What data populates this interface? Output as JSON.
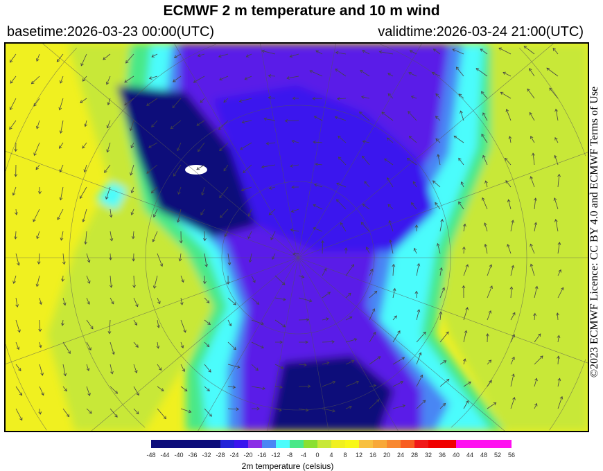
{
  "title": "ECMWF 2 m temperature and 10 m wind",
  "basetime": "basetime:2026-03-23 00:00(UTC)",
  "validtime": "validtime:2026-03-24 21:00(UTC)",
  "licence": "©2023 ECMWF Licence: CC BY 4.0 and ECMWF Terms of Use",
  "colorbar": {
    "label": "2m temperature (celsius)",
    "ticks": [
      "-48",
      "-44",
      "-40",
      "-36",
      "-32",
      "-28",
      "-24",
      "-20",
      "-16",
      "-12",
      "-8",
      "-4",
      "0",
      "4",
      "8",
      "12",
      "16",
      "20",
      "24",
      "28",
      "32",
      "36",
      "40",
      "44",
      "48",
      "52",
      "56"
    ],
    "colors": [
      "#0c0c7a",
      "#0c0c7a",
      "#0c0c7a",
      "#0c0c7a",
      "#0c0c7a",
      "#2222d8",
      "#3a14ee",
      "#8a2ee6",
      "#4a86f4",
      "#4cfcfc",
      "#48e888",
      "#8ae030",
      "#c8e838",
      "#f0f020",
      "#f8f818",
      "#f8c040",
      "#f8a838",
      "#f88830",
      "#f85c20",
      "#f01818",
      "#f00000",
      "#f00000",
      "#ff10f0",
      "#ff10f0",
      "#ff10f0",
      "#ff10f0"
    ]
  },
  "map_legend_colors": {
    "cold": "#0c0c7a",
    "purple": "#5a1ae8",
    "cyan": "#4cfcfc",
    "green": "#7ae050",
    "yellow": "#f0f020"
  }
}
